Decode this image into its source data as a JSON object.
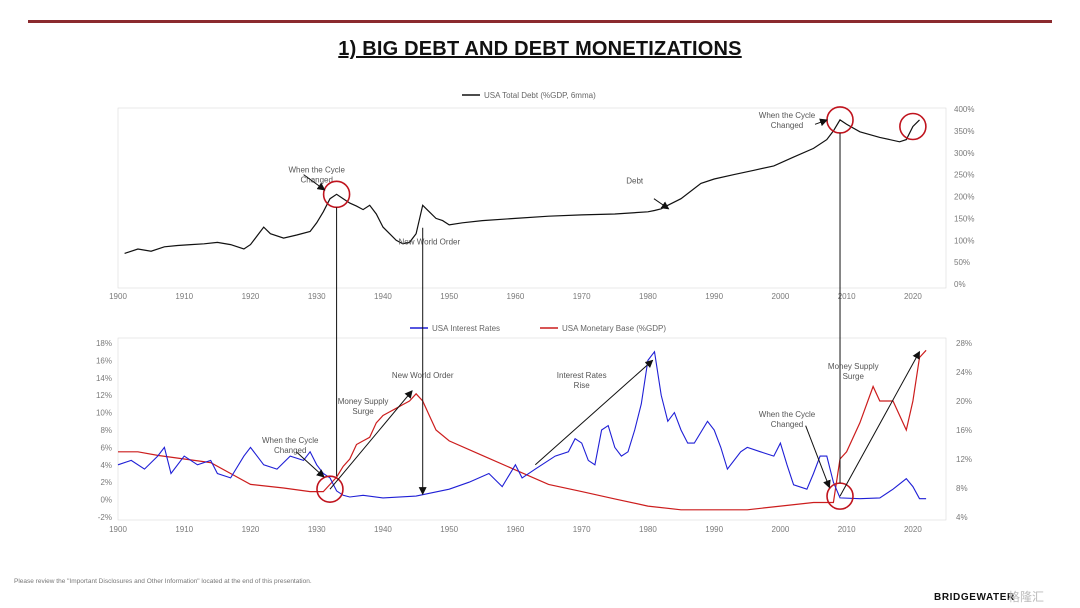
{
  "page": {
    "title": "1) BIG DEBT AND DEBT MONETIZATIONS",
    "footer_note": "Please review the \"Important Disclosures and Other Information\" located at the end of this presentation.",
    "brand": "BRIDGEWATER",
    "watermark": "格隆汇"
  },
  "colors": {
    "debt": "#111111",
    "rates": "#1f1fd6",
    "monetary": "#cc1d1d",
    "circle": "#c0141e",
    "rule": "#8b2a2e"
  },
  "chart_data": [
    {
      "type": "line",
      "legend_position": "top-center",
      "grid": false,
      "series": [
        {
          "name": "USA Total Debt (%GDP, 6mma)",
          "axis": "right",
          "points": [
            [
              1901,
              70
            ],
            [
              1903,
              80
            ],
            [
              1905,
              75
            ],
            [
              1907,
              85
            ],
            [
              1909,
              88
            ],
            [
              1911,
              90
            ],
            [
              1913,
              92
            ],
            [
              1915,
              95
            ],
            [
              1917,
              90
            ],
            [
              1919,
              80
            ],
            [
              1920,
              90
            ],
            [
              1921,
              110
            ],
            [
              1922,
              130
            ],
            [
              1923,
              115
            ],
            [
              1925,
              105
            ],
            [
              1927,
              112
            ],
            [
              1929,
              120
            ],
            [
              1930,
              140
            ],
            [
              1931,
              165
            ],
            [
              1932,
              195
            ],
            [
              1933,
              205
            ],
            [
              1934,
              195
            ],
            [
              1935,
              185
            ],
            [
              1936,
              178
            ],
            [
              1937,
              170
            ],
            [
              1938,
              180
            ],
            [
              1939,
              160
            ],
            [
              1940,
              130
            ],
            [
              1941,
              115
            ],
            [
              1942,
              100
            ],
            [
              1943,
              92
            ],
            [
              1944,
              95
            ],
            [
              1945,
              115
            ],
            [
              1946,
              180
            ],
            [
              1947,
              165
            ],
            [
              1948,
              150
            ],
            [
              1949,
              145
            ],
            [
              1950,
              135
            ],
            [
              1952,
              140
            ],
            [
              1955,
              145
            ],
            [
              1960,
              150
            ],
            [
              1965,
              155
            ],
            [
              1970,
              158
            ],
            [
              1975,
              160
            ],
            [
              1980,
              165
            ],
            [
              1981,
              168
            ],
            [
              1982,
              172
            ],
            [
              1983,
              180
            ],
            [
              1985,
              195
            ],
            [
              1988,
              230
            ],
            [
              1990,
              240
            ],
            [
              1993,
              250
            ],
            [
              1996,
              260
            ],
            [
              1999,
              270
            ],
            [
              2002,
              290
            ],
            [
              2005,
              310
            ],
            [
              2007,
              330
            ],
            [
              2008,
              350
            ],
            [
              2009,
              375
            ],
            [
              2010,
              365
            ],
            [
              2012,
              348
            ],
            [
              2015,
              335
            ],
            [
              2018,
              325
            ],
            [
              2019,
              330
            ],
            [
              2020,
              360
            ],
            [
              2021,
              375
            ]
          ]
        }
      ],
      "x_axis": {
        "ticks": [
          "1900",
          "1910",
          "1920",
          "1930",
          "1940",
          "1950",
          "1960",
          "1970",
          "1980",
          "1990",
          "2000",
          "2010",
          "2020"
        ],
        "range": [
          1900,
          2025
        ]
      },
      "y_axis_right": {
        "ticks": [
          "0%",
          "50%",
          "100%",
          "150%",
          "200%",
          "250%",
          "300%",
          "350%",
          "400%"
        ],
        "range": [
          0,
          400
        ]
      },
      "annotations": [
        {
          "text": "When the Cycle Changed",
          "x": 1930,
          "y": 255
        },
        {
          "text": "New World Order",
          "x": 1947,
          "y": 90
        },
        {
          "text": "Debt",
          "x": 1978,
          "y": 230
        },
        {
          "text": "When the Cycle Changed",
          "x": 2001,
          "y": 380
        }
      ],
      "highlights": [
        {
          "x": 1933,
          "y": 205
        },
        {
          "x": 2009,
          "y": 375
        },
        {
          "x": 2020,
          "y": 360
        }
      ]
    },
    {
      "type": "line",
      "legend_position": "top-center",
      "grid": false,
      "series": [
        {
          "name": "USA Interest Rates",
          "axis": "left",
          "points": [
            [
              1900,
              4
            ],
            [
              1902,
              4.5
            ],
            [
              1904,
              3.5
            ],
            [
              1906,
              5
            ],
            [
              1907,
              6
            ],
            [
              1908,
              3
            ],
            [
              1910,
              5
            ],
            [
              1912,
              4
            ],
            [
              1914,
              4.5
            ],
            [
              1915,
              3
            ],
            [
              1917,
              2.5
            ],
            [
              1919,
              5
            ],
            [
              1920,
              6
            ],
            [
              1921,
              5
            ],
            [
              1922,
              4
            ],
            [
              1924,
              3.5
            ],
            [
              1926,
              5
            ],
            [
              1928,
              4.5
            ],
            [
              1929,
              5.5
            ],
            [
              1930,
              4
            ],
            [
              1931,
              3
            ],
            [
              1932,
              2.5
            ],
            [
              1933,
              1
            ],
            [
              1934,
              0.5
            ],
            [
              1935,
              0.3
            ],
            [
              1937,
              0.5
            ],
            [
              1940,
              0.2
            ],
            [
              1945,
              0.4
            ],
            [
              1950,
              1.2
            ],
            [
              1953,
              2
            ],
            [
              1956,
              3
            ],
            [
              1958,
              1.5
            ],
            [
              1960,
              4
            ],
            [
              1961,
              2.5
            ],
            [
              1963,
              3.5
            ],
            [
              1966,
              5
            ],
            [
              1968,
              5.5
            ],
            [
              1969,
              7
            ],
            [
              1970,
              6.5
            ],
            [
              1971,
              4.5
            ],
            [
              1972,
              4
            ],
            [
              1973,
              8
            ],
            [
              1974,
              8.5
            ],
            [
              1975,
              6
            ],
            [
              1976,
              5
            ],
            [
              1977,
              5.5
            ],
            [
              1978,
              8
            ],
            [
              1979,
              11
            ],
            [
              1980,
              16
            ],
            [
              1981,
              17
            ],
            [
              1982,
              12
            ],
            [
              1983,
              9
            ],
            [
              1984,
              10
            ],
            [
              1985,
              8
            ],
            [
              1986,
              6.5
            ],
            [
              1987,
              6.5
            ],
            [
              1989,
              9
            ],
            [
              1990,
              8
            ],
            [
              1991,
              6
            ],
            [
              1992,
              3.5
            ],
            [
              1994,
              5.5
            ],
            [
              1995,
              6
            ],
            [
              1997,
              5.5
            ],
            [
              1999,
              5
            ],
            [
              2000,
              6.5
            ],
            [
              2001,
              4
            ],
            [
              2002,
              1.7
            ],
            [
              2004,
              1.2
            ],
            [
              2005,
              3
            ],
            [
              2006,
              5
            ],
            [
              2007,
              5
            ],
            [
              2008,
              2
            ],
            [
              2009,
              0.2
            ],
            [
              2012,
              0.1
            ],
            [
              2015,
              0.2
            ],
            [
              2017,
              1.2
            ],
            [
              2019,
              2.4
            ],
            [
              2020,
              1.5
            ],
            [
              2021,
              0.1
            ],
            [
              2022,
              0.1
            ]
          ]
        },
        {
          "name": "USA Monetary Base (%GDP)",
          "axis": "right",
          "points": [
            [
              1900,
              13
            ],
            [
              1903,
              13
            ],
            [
              1906,
              12.5
            ],
            [
              1910,
              12
            ],
            [
              1914,
              11.5
            ],
            [
              1917,
              10
            ],
            [
              1920,
              8.5
            ],
            [
              1925,
              8
            ],
            [
              1929,
              7.5
            ],
            [
              1930,
              7.5
            ],
            [
              1931,
              7.5
            ],
            [
              1932,
              8.5
            ],
            [
              1933,
              9.5
            ],
            [
              1934,
              11
            ],
            [
              1935,
              12
            ],
            [
              1936,
              14
            ],
            [
              1937,
              14.5
            ],
            [
              1938,
              15
            ],
            [
              1939,
              17
            ],
            [
              1940,
              18
            ],
            [
              1941,
              18.5
            ],
            [
              1942,
              19
            ],
            [
              1943,
              19.5
            ],
            [
              1944,
              20
            ],
            [
              1945,
              21
            ],
            [
              1946,
              20
            ],
            [
              1947,
              18
            ],
            [
              1948,
              16
            ],
            [
              1950,
              14.5
            ],
            [
              1955,
              12.5
            ],
            [
              1960,
              10.5
            ],
            [
              1965,
              8.5
            ],
            [
              1970,
              7.5
            ],
            [
              1975,
              6.5
            ],
            [
              1980,
              5.5
            ],
            [
              1985,
              5
            ],
            [
              1990,
              5
            ],
            [
              1995,
              5
            ],
            [
              2000,
              5.5
            ],
            [
              2005,
              6
            ],
            [
              2008,
              6
            ],
            [
              2009,
              12
            ],
            [
              2010,
              13
            ],
            [
              2012,
              17
            ],
            [
              2014,
              22
            ],
            [
              2015,
              20
            ],
            [
              2017,
              20
            ],
            [
              2019,
              16
            ],
            [
              2020,
              20
            ],
            [
              2021,
              26
            ],
            [
              2022,
              27
            ]
          ]
        }
      ],
      "x_axis": {
        "ticks": [
          "1900",
          "1910",
          "1920",
          "1930",
          "1940",
          "1950",
          "1960",
          "1970",
          "1980",
          "1990",
          "2000",
          "2010",
          "2020"
        ],
        "range": [
          1900,
          2025
        ]
      },
      "y_axis_left": {
        "ticks": [
          "-2%",
          "0%",
          "2%",
          "4%",
          "6%",
          "8%",
          "10%",
          "12%",
          "14%",
          "16%",
          "18%"
        ],
        "range": [
          -2,
          18
        ]
      },
      "y_axis_right": {
        "ticks": [
          "4%",
          "8%",
          "12%",
          "16%",
          "20%",
          "24%",
          "28%"
        ],
        "range": [
          4,
          28
        ]
      },
      "annotations": [
        {
          "text": "When the Cycle Changed",
          "x": 1926,
          "y": 6.5
        },
        {
          "text": "Money Supply Surge",
          "x": 1937,
          "y": 11
        },
        {
          "text": "New World Order",
          "x": 1946,
          "y": 14
        },
        {
          "text": "Interest Rates Rise",
          "x": 1970,
          "y": 14
        },
        {
          "text": "When the Cycle Changed",
          "x": 2001,
          "y": 9.5
        },
        {
          "text": "Money Supply Surge",
          "x": 2011,
          "y": 15
        }
      ],
      "highlights": [
        {
          "x": 1932,
          "y": 1.2
        },
        {
          "x": 2009,
          "y": 0.4
        }
      ]
    }
  ]
}
